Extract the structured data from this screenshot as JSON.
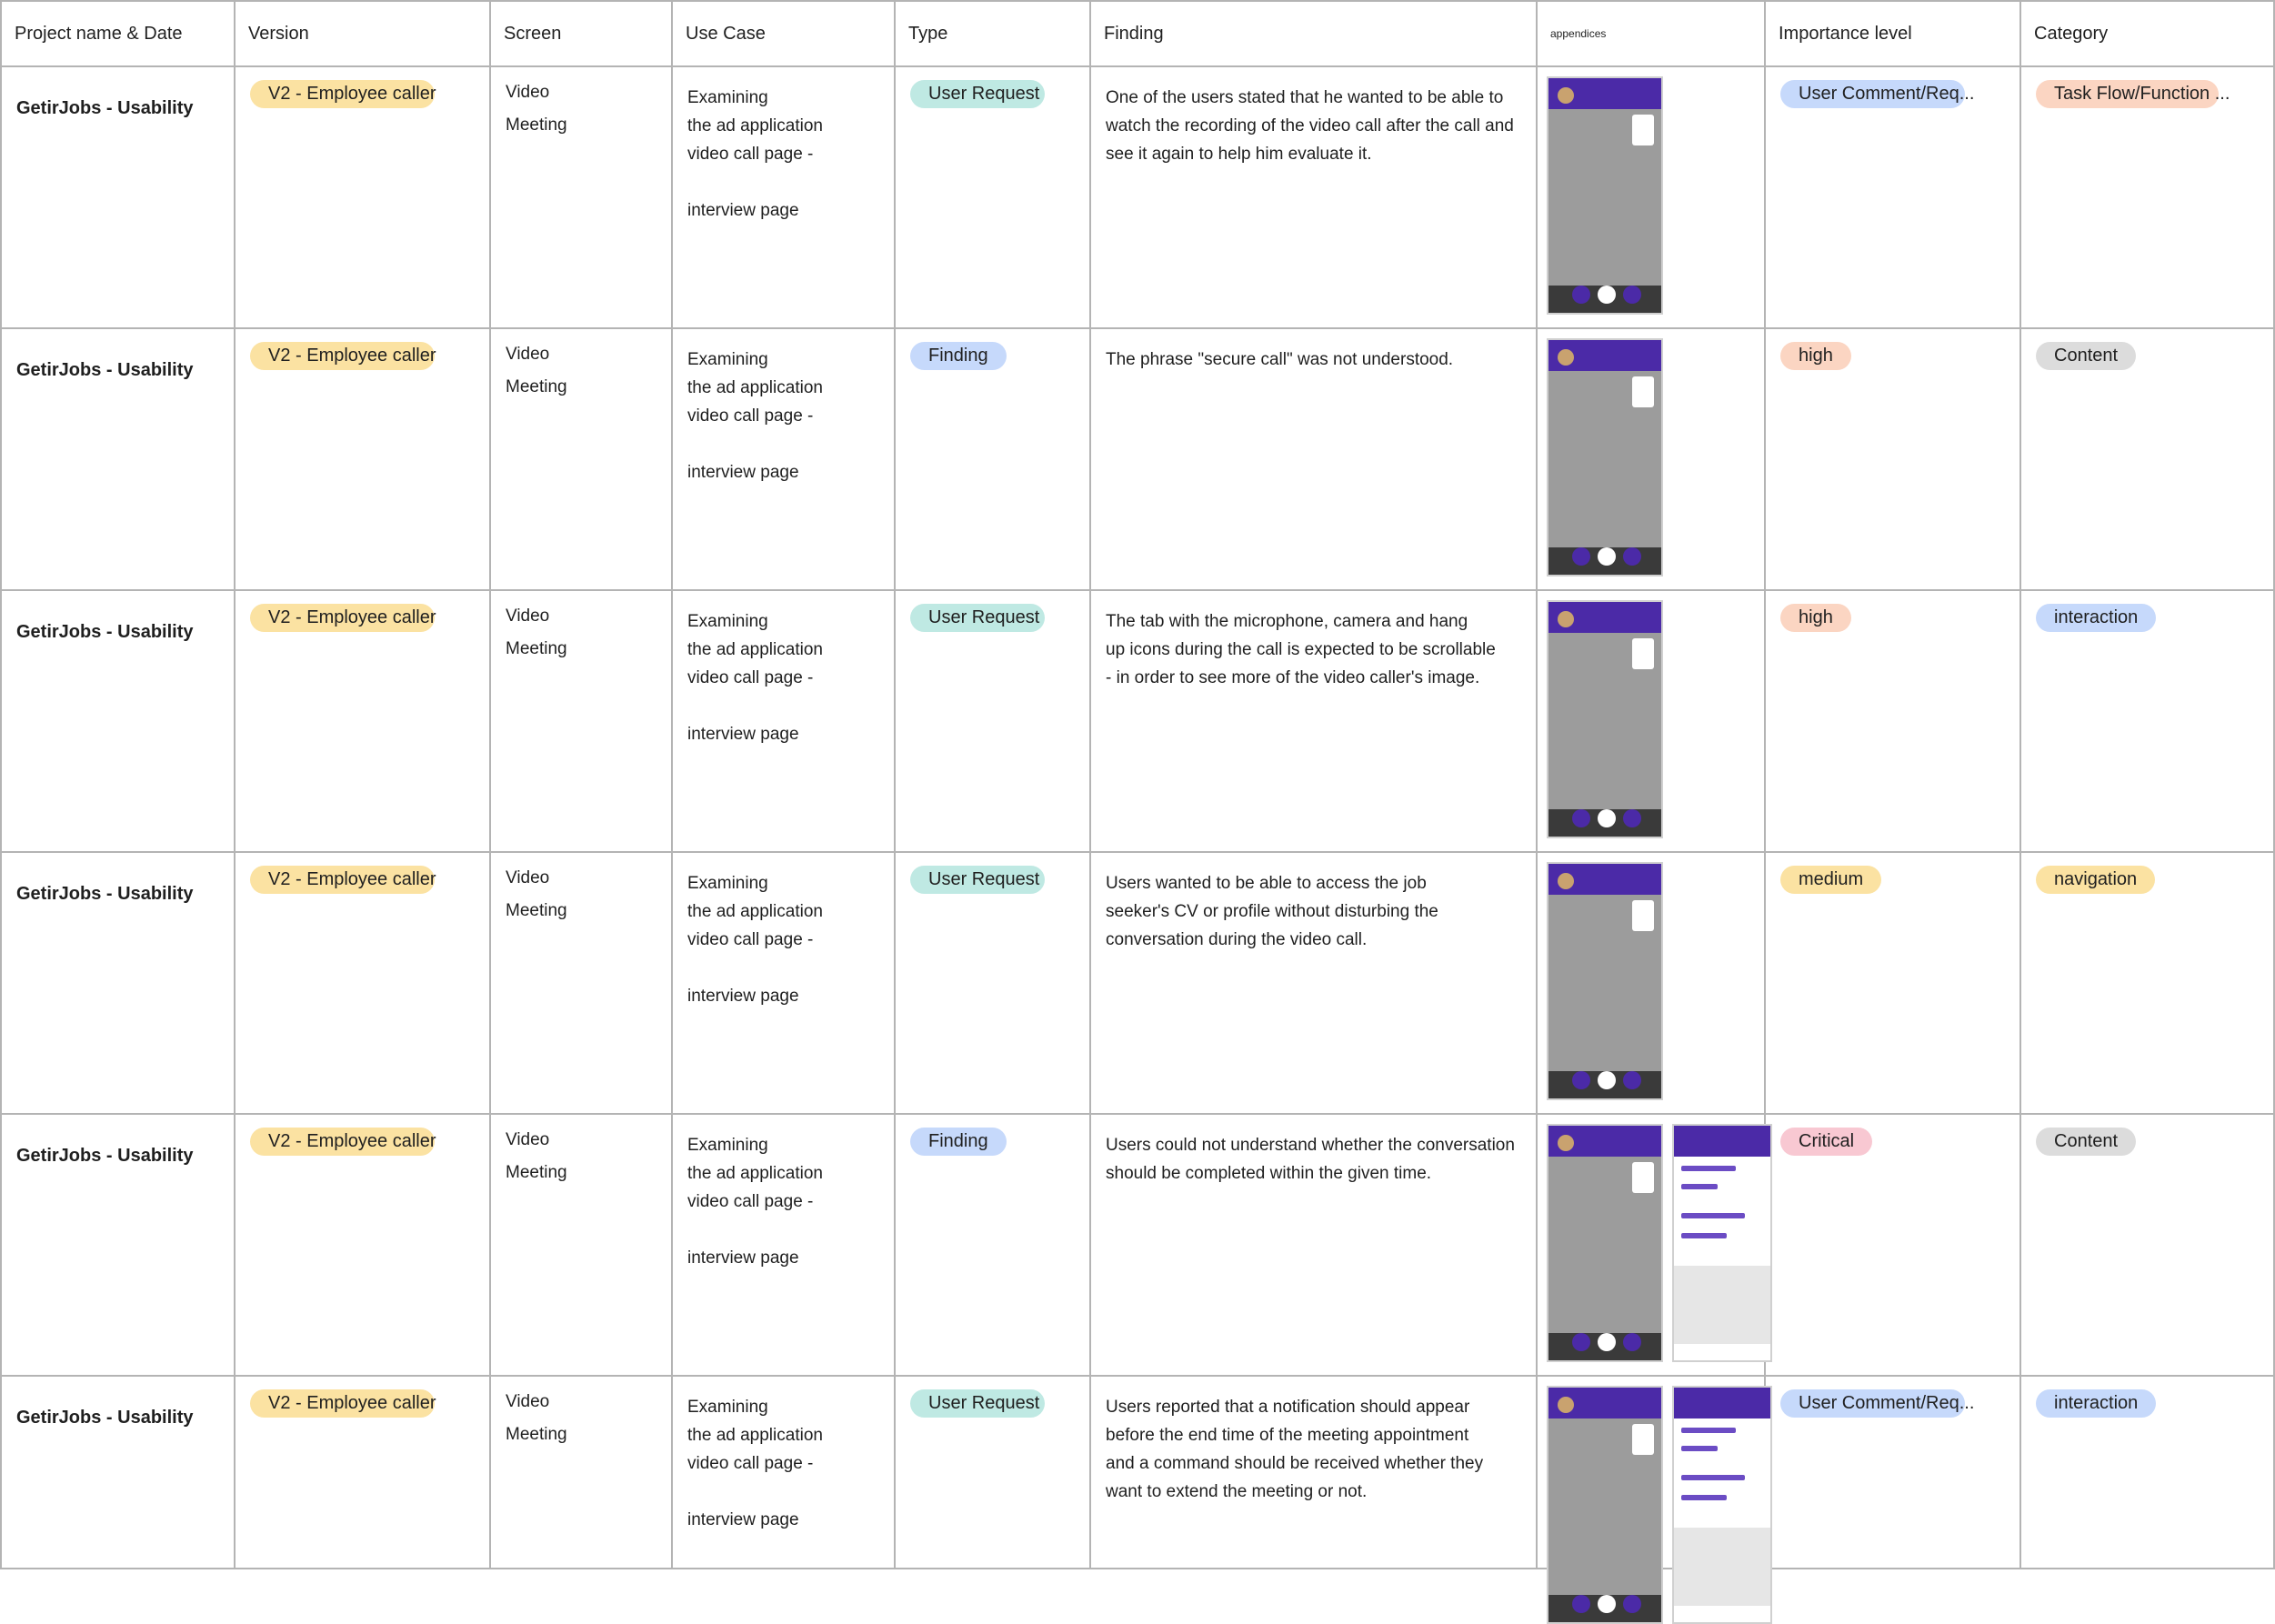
{
  "header": {
    "project": "Project name & Date",
    "version": "Version",
    "screen": "Screen",
    "use_case": "Use Case",
    "type": "Type",
    "finding": "Finding",
    "appendices": "appendices",
    "importance": "Importance level",
    "category": "Category"
  },
  "colors": {
    "yellow": "#fbe2a2",
    "teal": "#bfe9e3",
    "blue": "#c6d9fb",
    "salmon": "#fbd5c2",
    "pink": "#f8c8d2",
    "grey": "#dcdcdc"
  },
  "rows": [
    {
      "project": "GetirJobs - Usability",
      "version": "V2 - Employee caller",
      "screen": [
        "Video",
        "Meeting"
      ],
      "use_case": [
        "Examining",
        "the ad application",
        "video call page -",
        "interview page"
      ],
      "type": "User Request",
      "finding": [
        "One of the users stated that he wanted to be able to",
        "watch the recording of the video call after the call and",
        "see it again to help him evaluate it."
      ],
      "importance": "User Comment/Req...",
      "category": "Task Flow/Function ..."
    },
    {
      "project": "GetirJobs - Usability",
      "version": "V2 - Employee caller",
      "screen": [
        "Video",
        "Meeting"
      ],
      "use_case": [
        "Examining",
        "the ad application",
        "video call page -",
        "interview page"
      ],
      "type": "Finding",
      "finding": [
        "The phrase \"secure call\" was not understood."
      ],
      "importance": "high",
      "category": "Content"
    },
    {
      "project": "GetirJobs - Usability",
      "version": "V2 - Employee caller",
      "screen": [
        "Video",
        "Meeting"
      ],
      "use_case": [
        "Examining",
        "the ad application",
        "video call page -",
        "interview page"
      ],
      "type": "User Request",
      "finding": [
        "The tab with the microphone, camera and hang",
        "up icons during the call is expected to be scrollable",
        "- in order to see more of the video caller's image."
      ],
      "importance": "high",
      "category": "interaction"
    },
    {
      "project": "GetirJobs - Usability",
      "version": "V2 - Employee caller",
      "screen": [
        "Video",
        "Meeting"
      ],
      "use_case": [
        "Examining",
        "the ad application",
        "video call page -",
        "interview page"
      ],
      "type": "User Request",
      "finding": [
        "Users wanted to be able to access the job",
        "seeker's CV or profile without disturbing the",
        "conversation during the video call."
      ],
      "importance": "medium",
      "category": "navigation"
    },
    {
      "project": "GetirJobs - Usability",
      "version": "V2 - Employee caller",
      "screen": [
        "Video",
        "Meeting"
      ],
      "use_case": [
        "Examining",
        "the ad application",
        "video call page -",
        "interview page"
      ],
      "type": "Finding",
      "finding": [
        "Users could not understand whether the conversation",
        "should be completed within the given time."
      ],
      "importance": "Critical",
      "category": "Content"
    },
    {
      "project": "GetirJobs - Usability",
      "version": "V2 - Employee caller",
      "screen": [
        "Video",
        "Meeting"
      ],
      "use_case": [
        "Examining",
        "the ad application",
        "video call page -",
        "interview page"
      ],
      "type": "User Request",
      "finding": [
        "Users reported that a notification should appear",
        "before the end time of the meeting appointment",
        "and a command should be received whether they",
        "want to extend the meeting or not."
      ],
      "importance": "User Comment/Req...",
      "category": "interaction"
    }
  ]
}
